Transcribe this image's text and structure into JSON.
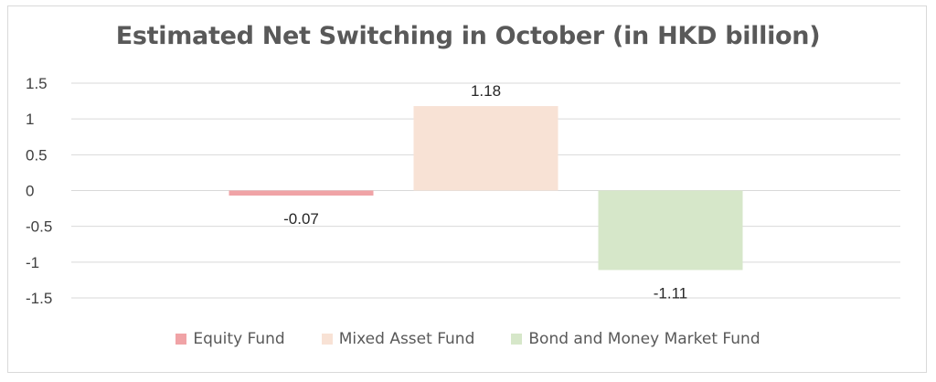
{
  "chart_data": {
    "type": "bar",
    "title": "Estimated Net Switching in October (in HKD billion)",
    "xlabel": "",
    "ylabel": "",
    "ylim": [
      -1.5,
      1.5
    ],
    "yticks": [
      1.5,
      1,
      0.5,
      0,
      -0.5,
      -1,
      -1.5
    ],
    "ytick_labels": [
      "1.5",
      "1",
      "0.5",
      "0",
      "-0.5",
      "-1",
      "-1.5"
    ],
    "grid": true,
    "legend_position": "bottom",
    "series": [
      {
        "name": "Equity Fund",
        "value": -0.07,
        "label": "-0.07",
        "color": "#f0a3a6"
      },
      {
        "name": "Mixed Asset Fund",
        "value": 1.18,
        "label": "1.18",
        "color": "#f8e2d5"
      },
      {
        "name": "Bond and Money Market Fund",
        "value": -1.11,
        "label": "-1.11",
        "color": "#d6e7c9"
      }
    ]
  }
}
